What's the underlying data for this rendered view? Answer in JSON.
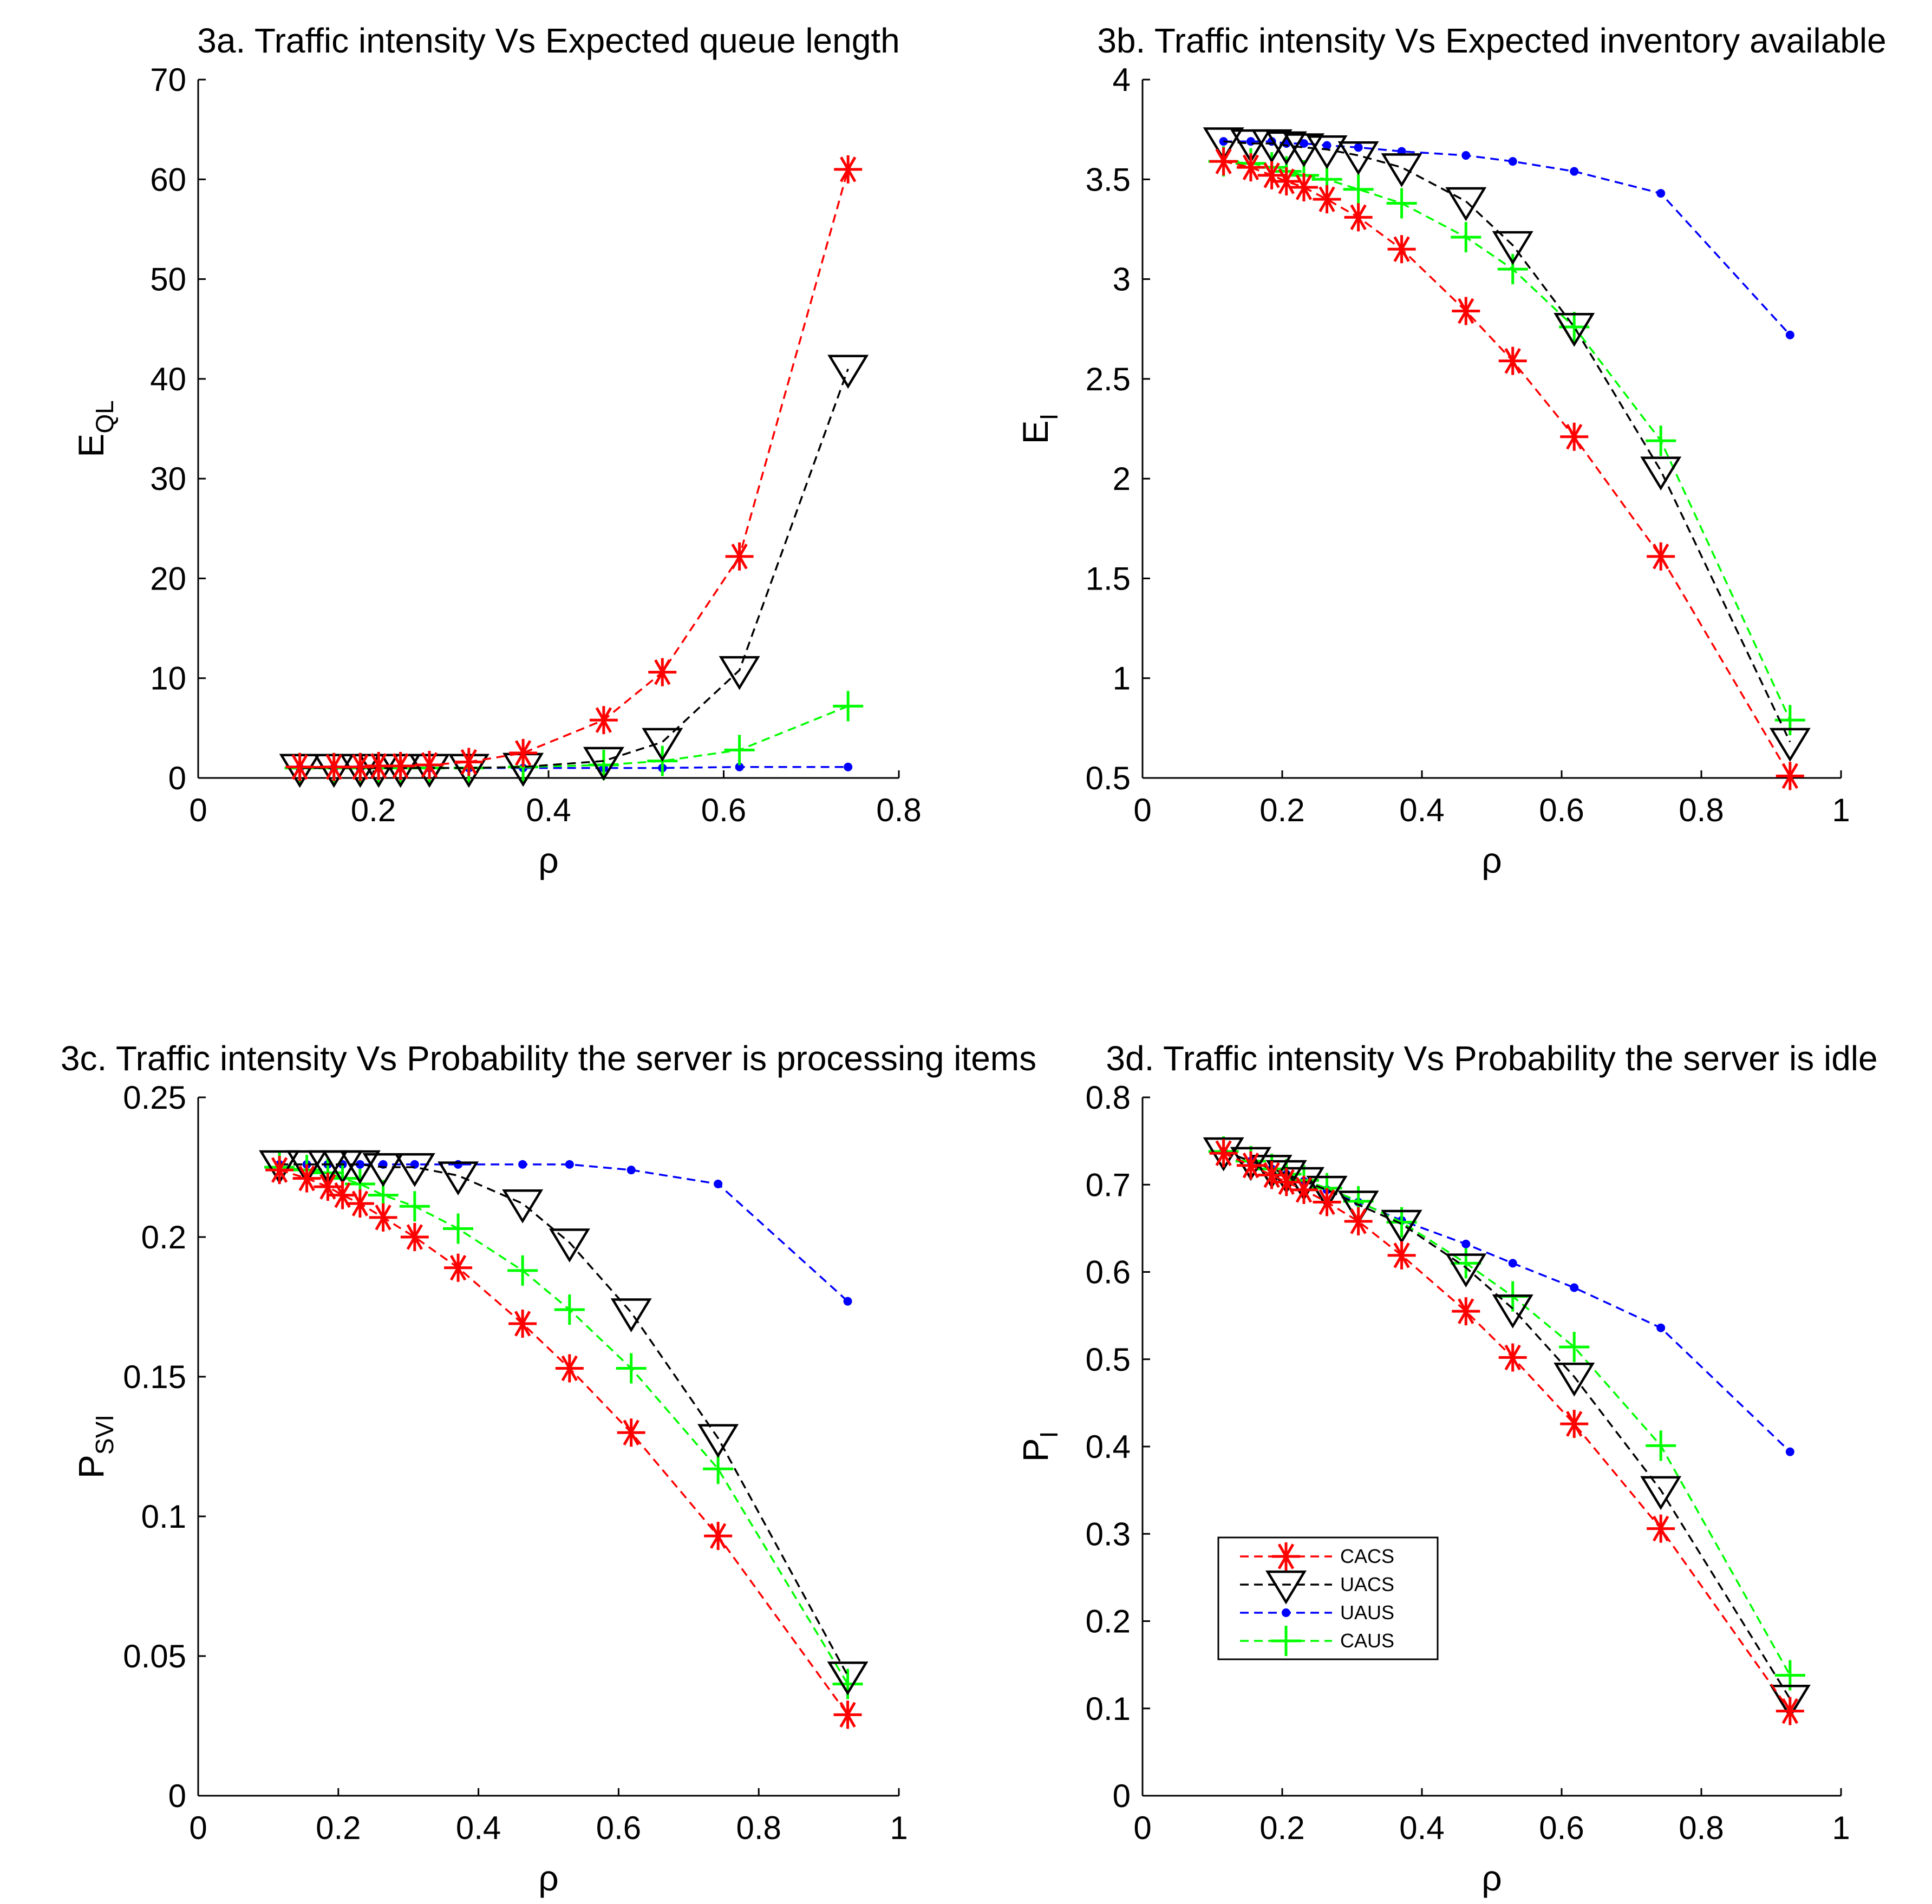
{
  "series_styles": {
    "CACS": {
      "color": "#ff0000",
      "marker": "asterisk"
    },
    "UACS": {
      "color": "#000000",
      "marker": "triangle-down"
    },
    "UAUS": {
      "color": "#0000ff",
      "marker": "dot"
    },
    "CAUS": {
      "color": "#00ff00",
      "marker": "plus"
    }
  },
  "legend": {
    "location": "inside-lower-left of panel 3d",
    "entries": [
      "CACS",
      "UACS",
      "UAUS",
      "CAUS"
    ]
  },
  "chart_data": [
    {
      "type": "line",
      "title": "3a. Traffic intensity Vs Expected queue length",
      "xlabel": "ρ",
      "ylabel_main": "E",
      "ylabel_sub": "QL",
      "xlim": [
        0,
        0.8
      ],
      "ylim": [
        0,
        70
      ],
      "xticks": [
        0,
        0.2,
        0.4,
        0.6,
        0.8
      ],
      "xtick_labels": [
        "0",
        "0.2",
        "0.4",
        "0.6",
        "0.8"
      ],
      "yticks": [
        0,
        10,
        20,
        30,
        40,
        50,
        60,
        70
      ],
      "ytick_labels": [
        "0",
        "10",
        "20",
        "30",
        "40",
        "50",
        "60",
        "70"
      ],
      "series": [
        {
          "name": "CACS",
          "x": [
            0.116,
            0.155,
            0.185,
            0.206,
            0.231,
            0.264,
            0.309,
            0.371,
            0.463,
            0.53,
            0.618,
            0.742
          ],
          "y": [
            1.1,
            1.1,
            1.1,
            1.2,
            1.2,
            1.3,
            1.6,
            2.5,
            5.8,
            10.6,
            22.2,
            61.0
          ]
        },
        {
          "name": "UACS",
          "x": [
            0.116,
            0.155,
            0.185,
            0.206,
            0.231,
            0.264,
            0.309,
            0.371,
            0.463,
            0.53,
            0.618,
            0.742
          ],
          "y": [
            1.0,
            1.0,
            1.0,
            1.0,
            1.0,
            1.0,
            1.0,
            1.1,
            1.7,
            3.6,
            10.8,
            41.0
          ]
        },
        {
          "name": "UAUS",
          "x": [
            0.116,
            0.155,
            0.185,
            0.206,
            0.231,
            0.264,
            0.309,
            0.371,
            0.463,
            0.53,
            0.618,
            0.742
          ],
          "y": [
            1.0,
            1.0,
            1.0,
            1.0,
            1.0,
            1.0,
            1.0,
            1.0,
            1.0,
            1.0,
            1.1,
            1.1
          ]
        },
        {
          "name": "CAUS",
          "x": [
            0.116,
            0.155,
            0.185,
            0.206,
            0.231,
            0.264,
            0.309,
            0.371,
            0.463,
            0.53,
            0.618,
            0.742
          ],
          "y": [
            1.0,
            1.0,
            1.0,
            1.0,
            1.0,
            1.0,
            1.0,
            1.1,
            1.3,
            1.7,
            2.8,
            7.2
          ]
        }
      ]
    },
    {
      "type": "line",
      "title": "3b. Traffic intensity Vs Expected inventory available",
      "xlabel": "ρ",
      "ylabel_main": "E",
      "ylabel_sub": "I",
      "xlim": [
        0,
        1
      ],
      "ylim": [
        0.5,
        4
      ],
      "xticks": [
        0,
        0.2,
        0.4,
        0.6,
        0.8,
        1
      ],
      "xtick_labels": [
        "0",
        "0.2",
        "0.4",
        "0.6",
        "0.8",
        "1"
      ],
      "yticks": [
        0.5,
        1,
        1.5,
        2,
        2.5,
        3,
        3.5,
        4
      ],
      "ytick_labels": [
        "0.5",
        "1",
        "1.5",
        "2",
        "2.5",
        "3",
        "3.5",
        "4"
      ],
      "series": [
        {
          "name": "CACS",
          "x": [
            0.116,
            0.155,
            0.185,
            0.206,
            0.231,
            0.264,
            0.309,
            0.371,
            0.463,
            0.53,
            0.618,
            0.742,
            0.927
          ],
          "y": [
            3.59,
            3.56,
            3.52,
            3.49,
            3.46,
            3.4,
            3.31,
            3.15,
            2.84,
            2.59,
            2.21,
            1.61,
            0.51
          ]
        },
        {
          "name": "UACS",
          "x": [
            0.116,
            0.155,
            0.185,
            0.206,
            0.231,
            0.264,
            0.309,
            0.371,
            0.463,
            0.53,
            0.618,
            0.742,
            0.927
          ],
          "y": [
            3.69,
            3.68,
            3.68,
            3.67,
            3.66,
            3.65,
            3.62,
            3.56,
            3.39,
            3.17,
            2.76,
            2.04,
            0.68
          ]
        },
        {
          "name": "UAUS",
          "x": [
            0.116,
            0.155,
            0.185,
            0.206,
            0.231,
            0.264,
            0.309,
            0.371,
            0.463,
            0.53,
            0.618,
            0.742,
            0.927
          ],
          "y": [
            3.69,
            3.69,
            3.69,
            3.68,
            3.68,
            3.67,
            3.66,
            3.64,
            3.62,
            3.59,
            3.54,
            3.43,
            2.72
          ]
        },
        {
          "name": "CAUS",
          "x": [
            0.116,
            0.155,
            0.185,
            0.206,
            0.231,
            0.264,
            0.309,
            0.371,
            0.463,
            0.53,
            0.618,
            0.742,
            0.927
          ],
          "y": [
            3.59,
            3.58,
            3.56,
            3.54,
            3.52,
            3.5,
            3.45,
            3.38,
            3.21,
            3.05,
            2.76,
            2.19,
            0.79
          ]
        }
      ]
    },
    {
      "type": "line",
      "title": "3c. Traffic intensity Vs Probability the server is processing items",
      "xlabel": "ρ",
      "ylabel_main": "P",
      "ylabel_sub": "SVI",
      "xlim": [
        0,
        1
      ],
      "ylim": [
        0,
        0.25
      ],
      "xticks": [
        0,
        0.2,
        0.4,
        0.6,
        0.8,
        1
      ],
      "xtick_labels": [
        "0",
        "0.2",
        "0.4",
        "0.6",
        "0.8",
        "1"
      ],
      "yticks": [
        0,
        0.05,
        0.1,
        0.15,
        0.2,
        0.25
      ],
      "ytick_labels": [
        "0",
        "0.05",
        "0.1",
        "0.15",
        "0.2",
        "0.25"
      ],
      "series": [
        {
          "name": "CACS",
          "x": [
            0.116,
            0.155,
            0.185,
            0.206,
            0.231,
            0.264,
            0.309,
            0.371,
            0.463,
            0.53,
            0.618,
            0.742,
            0.927
          ],
          "y": [
            0.224,
            0.221,
            0.218,
            0.215,
            0.212,
            0.207,
            0.2,
            0.189,
            0.169,
            0.153,
            0.13,
            0.093,
            0.029
          ]
        },
        {
          "name": "UACS",
          "x": [
            0.116,
            0.155,
            0.185,
            0.206,
            0.231,
            0.264,
            0.309,
            0.371,
            0.463,
            0.53,
            0.618,
            0.742,
            0.927
          ],
          "y": [
            0.226,
            0.226,
            0.226,
            0.226,
            0.226,
            0.225,
            0.225,
            0.222,
            0.212,
            0.198,
            0.173,
            0.128,
            0.043
          ]
        },
        {
          "name": "UAUS",
          "x": [
            0.116,
            0.155,
            0.185,
            0.206,
            0.231,
            0.264,
            0.309,
            0.371,
            0.463,
            0.53,
            0.618,
            0.742,
            0.927
          ],
          "y": [
            0.226,
            0.226,
            0.226,
            0.226,
            0.226,
            0.226,
            0.226,
            0.226,
            0.226,
            0.226,
            0.224,
            0.219,
            0.177
          ]
        },
        {
          "name": "CAUS",
          "x": [
            0.116,
            0.155,
            0.185,
            0.206,
            0.231,
            0.264,
            0.309,
            0.371,
            0.463,
            0.53,
            0.618,
            0.742,
            0.927
          ],
          "y": [
            0.225,
            0.224,
            0.223,
            0.221,
            0.219,
            0.215,
            0.211,
            0.203,
            0.188,
            0.174,
            0.153,
            0.117,
            0.04
          ]
        }
      ]
    },
    {
      "type": "line",
      "title": "3d. Traffic intensity Vs Probability the server is idle",
      "xlabel": "ρ",
      "ylabel_main": "P",
      "ylabel_sub": "I",
      "xlim": [
        0,
        1
      ],
      "ylim": [
        0,
        0.8
      ],
      "xticks": [
        0,
        0.2,
        0.4,
        0.6,
        0.8,
        1
      ],
      "xtick_labels": [
        "0",
        "0.2",
        "0.4",
        "0.6",
        "0.8",
        "1"
      ],
      "yticks": [
        0,
        0.1,
        0.2,
        0.3,
        0.4,
        0.5,
        0.6,
        0.7,
        0.8
      ],
      "ytick_labels": [
        "0",
        "0.1",
        "0.2",
        "0.3",
        "0.4",
        "0.5",
        "0.6",
        "0.7",
        "0.8"
      ],
      "series": [
        {
          "name": "CACS",
          "x": [
            0.116,
            0.155,
            0.185,
            0.206,
            0.231,
            0.264,
            0.309,
            0.371,
            0.463,
            0.53,
            0.618,
            0.742,
            0.927
          ],
          "y": [
            0.736,
            0.722,
            0.711,
            0.703,
            0.694,
            0.68,
            0.658,
            0.619,
            0.555,
            0.502,
            0.426,
            0.306,
            0.097
          ]
        },
        {
          "name": "UACS",
          "x": [
            0.116,
            0.155,
            0.185,
            0.206,
            0.231,
            0.264,
            0.309,
            0.371,
            0.463,
            0.53,
            0.618,
            0.742,
            0.927
          ],
          "y": [
            0.738,
            0.727,
            0.718,
            0.712,
            0.704,
            0.694,
            0.677,
            0.655,
            0.605,
            0.558,
            0.48,
            0.35,
            0.111
          ]
        },
        {
          "name": "UAUS",
          "x": [
            0.116,
            0.155,
            0.185,
            0.206,
            0.231,
            0.264,
            0.309,
            0.371,
            0.463,
            0.53,
            0.618,
            0.742,
            0.927
          ],
          "y": [
            0.738,
            0.727,
            0.718,
            0.712,
            0.704,
            0.694,
            0.68,
            0.659,
            0.632,
            0.61,
            0.582,
            0.536,
            0.394
          ]
        },
        {
          "name": "CAUS",
          "x": [
            0.116,
            0.155,
            0.185,
            0.206,
            0.231,
            0.264,
            0.309,
            0.371,
            0.463,
            0.53,
            0.618,
            0.742,
            0.927
          ],
          "y": [
            0.738,
            0.727,
            0.718,
            0.712,
            0.705,
            0.696,
            0.681,
            0.657,
            0.61,
            0.572,
            0.514,
            0.401,
            0.138
          ]
        }
      ]
    }
  ]
}
